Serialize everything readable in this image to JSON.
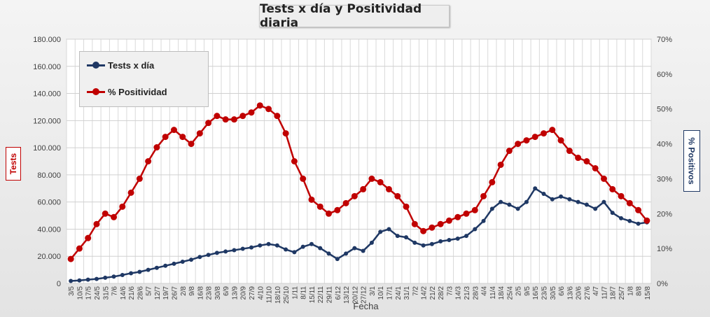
{
  "chart_data": {
    "type": "line",
    "title": "Tests x día y Positividad  diaria",
    "xlabel": "Fecha",
    "ylabel_left": "Tests",
    "ylabel_right": "% Positivos",
    "ylim_left": [
      0,
      180000
    ],
    "ylim_right": [
      0,
      70
    ],
    "left_ticks": [
      "0",
      "20.000",
      "40.000",
      "60.000",
      "80.000",
      "100.000",
      "120.000",
      "140.000",
      "160.000",
      "180.000"
    ],
    "right_ticks": [
      "0%",
      "10%",
      "20%",
      "30%",
      "40%",
      "50%",
      "60%",
      "70%"
    ],
    "categories": [
      "3/5",
      "10/5",
      "17/5",
      "24/5",
      "31/5",
      "7/6",
      "14/6",
      "21/6",
      "28/6",
      "5/7",
      "12/7",
      "19/7",
      "26/7",
      "2/8",
      "9/8",
      "16/8",
      "23/8",
      "30/8",
      "6/9",
      "13/9",
      "20/9",
      "27/9",
      "4/10",
      "11/10",
      "18/10",
      "25/10",
      "1/11",
      "8/11",
      "15/11",
      "22/11",
      "29/11",
      "6/12",
      "13/12",
      "20/12",
      "27/12",
      "3/1",
      "10/1",
      "17/1",
      "24/1",
      "31/1",
      "7/2",
      "14/2",
      "21/2",
      "28/2",
      "7/3",
      "14/3",
      "21/3",
      "28/3",
      "4/4",
      "11/4",
      "18/4",
      "25/4",
      "2/5",
      "9/5",
      "16/5",
      "23/5",
      "30/5",
      "6/6",
      "13/6",
      "20/6",
      "27/6",
      "4/7",
      "11/7",
      "18/7",
      "25/7",
      "1/8",
      "8/8",
      "15/8"
    ],
    "legend_position": "top-left",
    "grid": true,
    "series": [
      {
        "name": "Tests x día",
        "axis": "left",
        "color": "#1f3864",
        "values": [
          1800,
          2200,
          2800,
          3300,
          4200,
          5000,
          6200,
          7500,
          8500,
          10000,
          11500,
          13000,
          14500,
          16000,
          17500,
          19500,
          21000,
          22500,
          23500,
          24500,
          25500,
          26500,
          28000,
          29000,
          28000,
          25000,
          23000,
          27000,
          29000,
          26000,
          22000,
          18000,
          22000,
          26000,
          24000,
          30000,
          38000,
          40000,
          35000,
          34000,
          30000,
          28000,
          29000,
          31000,
          32000,
          33000,
          35000,
          40000,
          46000,
          55000,
          60000,
          58000,
          55000,
          60000,
          70000,
          66000,
          62000,
          64000,
          62000,
          60000,
          58000,
          55000,
          60000,
          52000,
          48000,
          46000,
          44000,
          45000
        ]
      },
      {
        "name": "% Positividad",
        "axis": "right",
        "color": "#c00000",
        "values": [
          7,
          10,
          13,
          17,
          20,
          19,
          22,
          26,
          30,
          35,
          39,
          42,
          44,
          42,
          40,
          43,
          46,
          48,
          47,
          47,
          48,
          49,
          51,
          50,
          48,
          43,
          35,
          30,
          24,
          22,
          20,
          21,
          23,
          25,
          27,
          30,
          29,
          27,
          25,
          22,
          17,
          15,
          16,
          17,
          18,
          19,
          20,
          21,
          25,
          29,
          34,
          38,
          40,
          41,
          42,
          43,
          44,
          41,
          38,
          36,
          35,
          33,
          30,
          27,
          25,
          23,
          21,
          18
        ]
      }
    ]
  }
}
